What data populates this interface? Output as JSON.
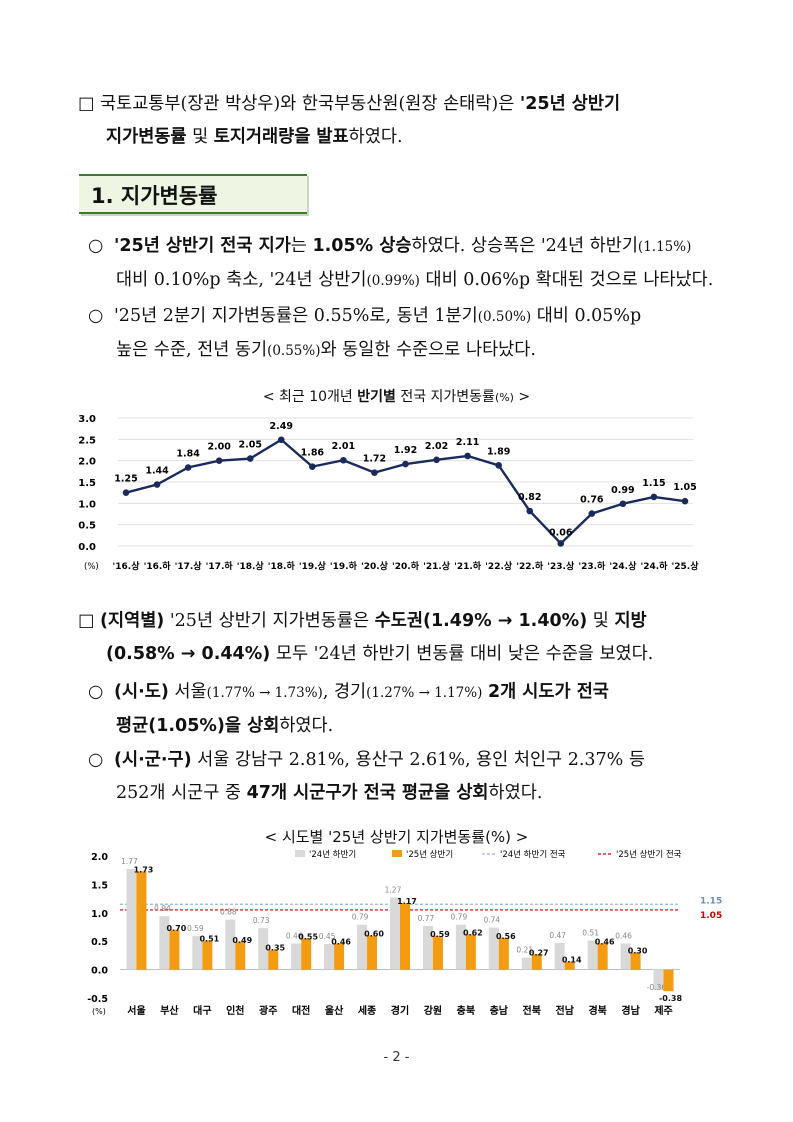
{
  "intro": {
    "mark": "□",
    "text1": "국토교통부(장관 박상우)와 한국부동산원(원장 손태락)은 ",
    "bold1": "'25년 상반기",
    "bold2": "지가변동률",
    "text2": " 및 ",
    "bold3": "토지거래량을 발표",
    "text3": "하였다."
  },
  "section_heading": "1. 지가변동률",
  "bullet1": {
    "mark": "○",
    "bold1": "'25년 상반기 전국 지가",
    "text1": "는 ",
    "bold2": "1.05% 상승",
    "text2": "하였다. 상승폭은 '24년 하반기",
    "small1": "(1.15%)",
    "text3": "대비 0.10%p 축소, '24년 상반기",
    "small2": "(0.99%)",
    "text4": " 대비 0.06%p 확대된 것으로 나타났다."
  },
  "bullet2": {
    "mark": "○",
    "text1": "'25년 2분기 지가변동률은 0.55%로, 동년 1분기",
    "small1": "(0.50%)",
    "text2": " 대비 0.05%p",
    "text3": "높은 수준, 전년 동기",
    "small2": "(0.55%)",
    "text4": "와 동일한 수준으로 나타났다."
  },
  "chart1_title": {
    "prefix": "< 최근 10개년 ",
    "bold": "반기별",
    "suffix": " 전국 지가변동률",
    "unit": "(%)",
    "end": " >"
  },
  "regional": {
    "mark": "□",
    "bold1": "(지역별)",
    "text1": " '25년 상반기 지가변동률은 ",
    "bold2": "수도권(1.49% → 1.40%)",
    "text2": " 및 ",
    "bold3": "지방",
    "bold4": "(0.58% → 0.44%)",
    "text3": " 모두 '24년 하반기 변동률 대비 낮은 수준을 보였다."
  },
  "bullet3": {
    "mark": "○",
    "bold1": "(시·도)",
    "text1": " 서울",
    "small1": "(1.77% → 1.73%)",
    "text2": ", 경기",
    "small2": "(1.27% → 1.17%)",
    "text3": " ",
    "bold2": "2개 시도가 전국",
    "bold3": "평균(1.05%)을 상회",
    "text4": "하였다."
  },
  "bullet4": {
    "mark": "○",
    "bold1": "(시·군·구)",
    "text1": " 서울 강남구 2.81%, 용산구 2.61%, 용인 처인구 2.37% 등",
    "text2": "252개 시군구 중 ",
    "bold2": "47개 시군구가 전국 평균을 상회",
    "text3": "하였다."
  },
  "chart2_title": "< 시도별 '25년 상반기 지가변동률(%) >",
  "page_number": "- 2 -",
  "chart_data": [
    {
      "type": "line",
      "title": "< 최근 10개년 반기별 전국 지가변동률(%) >",
      "ylabel": "(%)",
      "ylim": [
        0.0,
        3.0
      ],
      "yticks": [
        "3.0",
        "2.5",
        "2.0",
        "1.5",
        "1.0",
        "0.5",
        "0.0"
      ],
      "categories": [
        "'16.상",
        "'16.하",
        "'17.상",
        "'17.하",
        "'18.상",
        "'18.하",
        "'19.상",
        "'19.하",
        "'20.상",
        "'20.하",
        "'21.상",
        "'21.하",
        "'22.상",
        "'22.하",
        "'23.상",
        "'23.하",
        "'24.상",
        "'24.하",
        "'25.상"
      ],
      "values": [
        1.25,
        1.44,
        1.84,
        2.0,
        2.05,
        2.49,
        1.86,
        2.01,
        1.72,
        1.92,
        2.02,
        2.11,
        1.89,
        0.82,
        0.06,
        0.76,
        0.99,
        1.15,
        1.05
      ],
      "labels": [
        "1.25",
        "1.44",
        "1.84",
        "2.00",
        "2.05",
        "2.49",
        "1.86",
        "2.01",
        "1.72",
        "1.92",
        "2.02",
        "2.11",
        "1.89",
        "0.82",
        "0.06",
        "0.76",
        "0.99",
        "1.15",
        "1.05"
      ],
      "color": "#1b2a5c",
      "grid": true
    },
    {
      "type": "bar",
      "title": "< 시도별 '25년 상반기 지가변동률(%) >",
      "ylabel": "(%)",
      "ylim": [
        -0.5,
        2.0
      ],
      "yticks": [
        "2.0",
        "1.5",
        "1.0",
        "0.5",
        "0.0",
        "-0.5"
      ],
      "categories": [
        "서울",
        "부산",
        "대구",
        "인천",
        "광주",
        "대전",
        "울산",
        "세종",
        "경기",
        "강원",
        "충북",
        "충남",
        "전북",
        "전남",
        "경북",
        "경남",
        "제주"
      ],
      "series": [
        {
          "name": "'24년 하반기",
          "color": "#d9d9d9",
          "values": [
            1.77,
            0.94,
            0.59,
            0.88,
            0.73,
            0.46,
            0.45,
            0.79,
            1.27,
            0.77,
            0.79,
            0.74,
            0.21,
            0.47,
            0.51,
            0.46,
            -0.36
          ],
          "labels": [
            "1.77",
            "0.94",
            "0.59",
            "0.88",
            "0.73",
            "0.46",
            "0.45",
            "0.79",
            "1.27",
            "0.77",
            "0.79",
            "0.74",
            "0.21",
            "0.47",
            "0.51",
            "0.46",
            "-0.36"
          ]
        },
        {
          "name": "'25년 상반기",
          "color": "#f39c12",
          "values": [
            1.73,
            0.7,
            0.51,
            0.49,
            0.35,
            0.55,
            0.46,
            0.6,
            1.17,
            0.59,
            0.62,
            0.56,
            0.27,
            0.14,
            0.46,
            0.3,
            -0.38
          ],
          "labels": [
            "1.73",
            "0.70",
            "0.51",
            "0.49",
            "0.35",
            "0.55",
            "0.46",
            "0.60",
            "1.17",
            "0.59",
            "0.62",
            "0.56",
            "0.27",
            "0.14",
            "0.46",
            "0.30",
            "-0.38"
          ]
        }
      ],
      "reference_lines": [
        {
          "name": "'24년 하반기 전국",
          "value": 1.15,
          "label": "1.15",
          "color": "#9bb7d4"
        },
        {
          "name": "'25년 상반기 전국",
          "value": 1.05,
          "label": "1.05",
          "color": "#cc0000"
        }
      ],
      "legend_position": "top",
      "grid": false
    }
  ]
}
